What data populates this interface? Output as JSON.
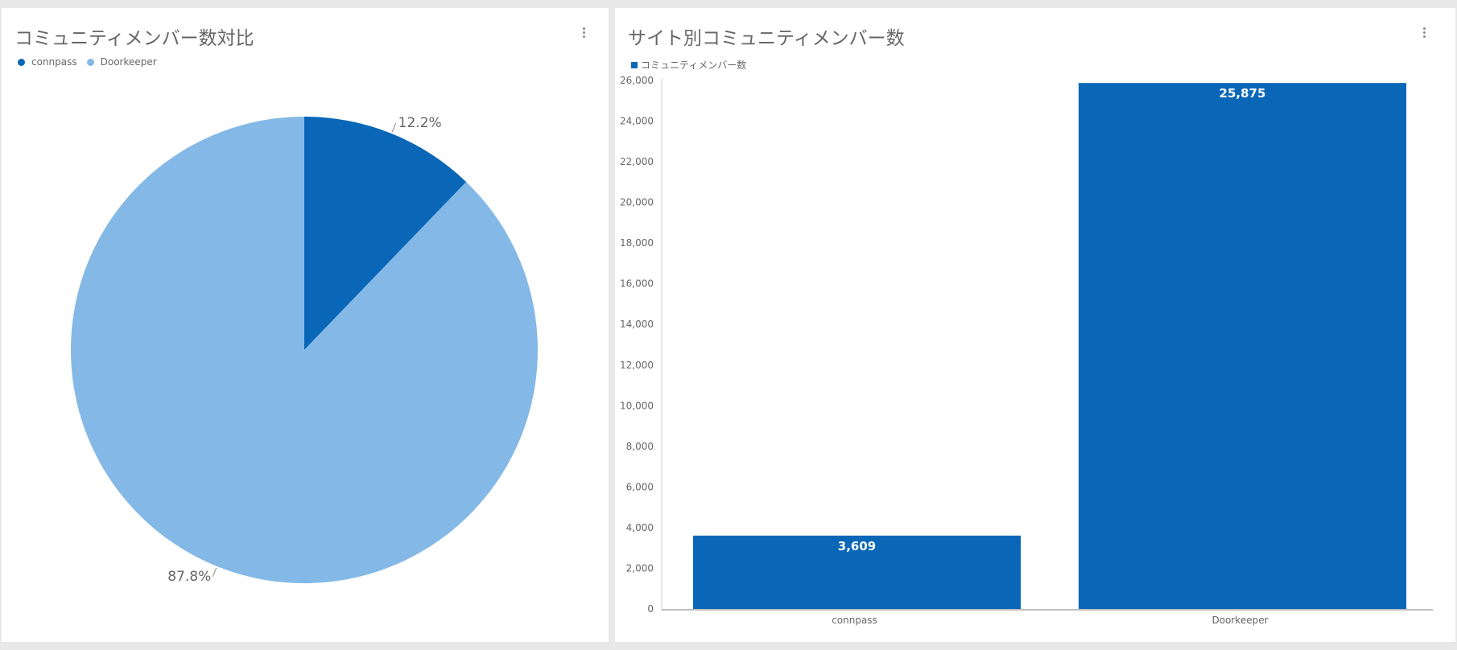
{
  "panels": {
    "left": {
      "title": "コミュニティメンバー数対比"
    },
    "right": {
      "title": "サイト別コミュニティメンバー数"
    }
  },
  "chart_data": [
    {
      "type": "pie",
      "title": "コミュニティメンバー数対比",
      "legend_position": "top-left",
      "slices": [
        {
          "label": "connpass",
          "value": 12.2,
          "display": "12.2%",
          "color": "#0a67b8"
        },
        {
          "label": "Doorkeeper",
          "value": 87.8,
          "display": "87.8%",
          "color": "#84b8e6"
        }
      ]
    },
    {
      "type": "bar",
      "title": "サイト別コミュニティメンバー数",
      "legend_position": "top-left",
      "categories": [
        "connpass",
        "Doorkeeper"
      ],
      "series": [
        {
          "name": "コミュニティメンバー数",
          "values": [
            3609,
            25875
          ],
          "data_labels": [
            "3,609",
            "25,875"
          ],
          "color": "#0a67b8"
        }
      ],
      "ylim": [
        0,
        26000
      ],
      "yticks": [
        0,
        2000,
        4000,
        6000,
        8000,
        10000,
        12000,
        14000,
        16000,
        18000,
        20000,
        22000,
        24000,
        26000
      ],
      "ytick_labels": [
        "0",
        "2,000",
        "4,000",
        "6,000",
        "8,000",
        "10,000",
        "12,000",
        "14,000",
        "16,000",
        "18,000",
        "20,000",
        "22,000",
        "24,000",
        "26,000"
      ],
      "grid": false
    }
  ]
}
